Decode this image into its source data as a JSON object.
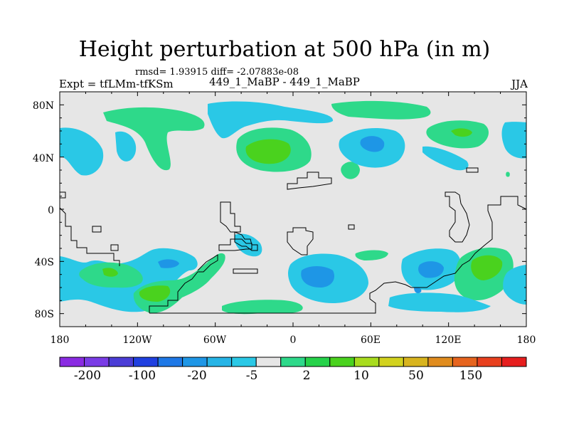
{
  "title": "Height perturbation at 500 hPa (in m)",
  "stats": "rmsd= 1.93915 diff= -2.07883e-08",
  "left_label": "Expt = tfLMm-tfKSm",
  "center_label": "449_1_MaBP - 449_1_MaBP",
  "right_label": "JJA",
  "x_ticks": [
    "180",
    "120W",
    "60W",
    "0",
    "60E",
    "120E",
    "180"
  ],
  "y_ticks": [
    "80N",
    "40N",
    "0",
    "40S",
    "80S"
  ],
  "colorbar": {
    "colors": [
      "#8a2be2",
      "#7a3ce6",
      "#4b3dd6",
      "#2040e0",
      "#1e78e6",
      "#1e96e6",
      "#26b4e6",
      "#2ac8e6",
      "#e6e6e6",
      "#2ed98a",
      "#26d24a",
      "#4ad21e",
      "#a8dc1e",
      "#d2d21e",
      "#d8b41e",
      "#e08c1e",
      "#e6641e",
      "#e8401e",
      "#e61e1e"
    ],
    "labels": [
      "-200",
      "-100",
      "-20",
      "-5",
      "2",
      "10",
      "50",
      "150"
    ]
  },
  "legend_colors": {
    "neg_cyan": "#2ac8e6",
    "neg_blue": "#1e96e6",
    "pos_teal": "#2ed98a",
    "pos_green": "#4ad21e",
    "background": "#e6e6e6"
  }
}
